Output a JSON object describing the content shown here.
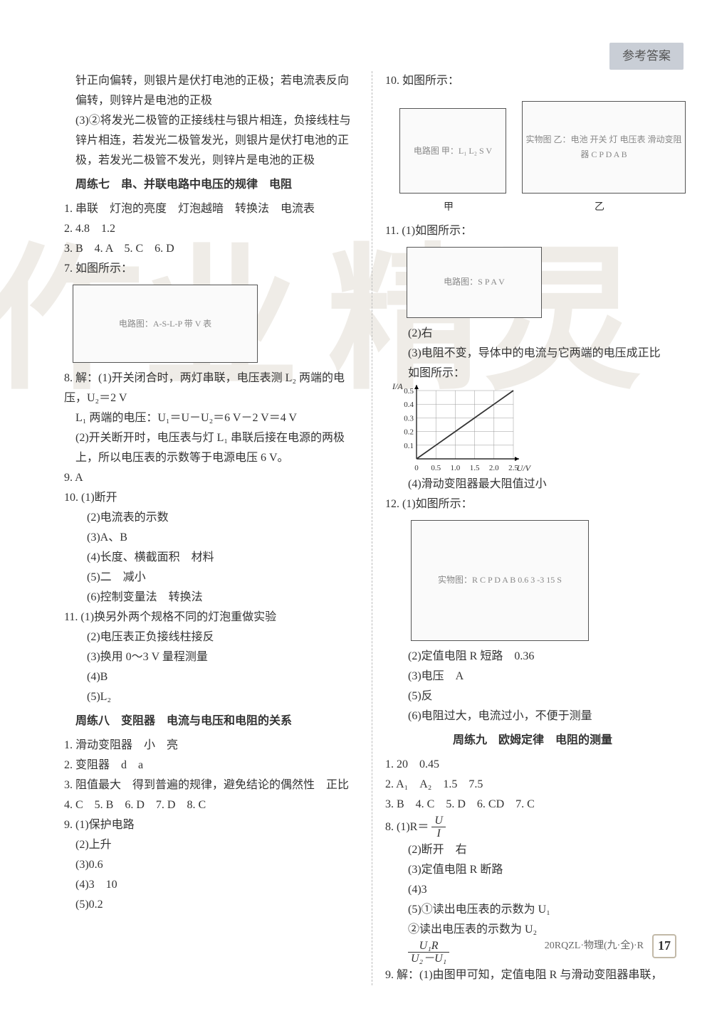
{
  "header_tab": "参考答案",
  "watermark_left": "作业",
  "watermark_right": "精灵",
  "footer_code": "20RQZL·物理(九·全)·R",
  "page_number": "17",
  "left": {
    "p1": "针正向偏转，则银片是伏打电池的正极；若电流表反向偏转，则锌片是电池的正极",
    "p2": "(3)②将发光二极管的正接线柱与银片相连，负接线柱与锌片相连，若发光二极管发光，则银片是伏打电池的正极，若发光二极管不发光，则锌片是电池的正极",
    "title7": "周练七　串、并联电路中电压的规律　电阻",
    "q1": "1. 串联　灯泡的亮度　灯泡越暗　转换法　电流表",
    "q2": "2. 4.8　1.2",
    "q3": "3. B　4. A　5. C　6. D",
    "q7_label": "7. 如图所示：",
    "q7_fig": "电路图：A-S-L-P 带 V 表",
    "q8a": "8. 解：(1)开关闭合时，两灯串联，电压表测 L₂ 两端的电压，U₂＝2 V",
    "q8b": "L₁ 两端的电压：U₁＝U－U₂＝6 V－2 V＝4 V",
    "q8c": "(2)开关断开时，电压表与灯 L₁ 串联后接在电源的两极上，所以电压表的示数等于电源电压 6 V。",
    "q9": "9. A",
    "q10_1": "10. (1)断开",
    "q10_2": "(2)电流表的示数",
    "q10_3": "(3)A、B",
    "q10_4": "(4)长度、横截面积　材料",
    "q10_5": "(5)二　减小",
    "q10_6": "(6)控制变量法　转换法",
    "q11_1": "11. (1)换另外两个规格不同的灯泡重做实验",
    "q11_2": "(2)电压表正负接线柱接反",
    "q11_3": "(3)换用 0～3 V 量程测量",
    "q11_4": "(4)B",
    "q11_5": "(5)L₂",
    "title8": "周练八　变阻器　电流与电压和电阻的关系",
    "r1": "1. 滑动变阻器　小　亮",
    "r2": "2. 变阻器　d　a",
    "r3": "3. 阻值最大　得到普遍的规律，避免结论的偶然性　正比",
    "r4": "4. C　5. B　6. D　7. D　8. C",
    "r9_1": "9. (1)保护电路",
    "r9_2": "(2)上升",
    "r9_3": "(3)0.6",
    "r9_4": "(4)3　10",
    "r9_5": "(5)0.2"
  },
  "right": {
    "q10_label": "10. 如图所示：",
    "fig10_a": "电路图 甲：L₁ L₂ S V",
    "fig10_a_caption": "甲",
    "fig10_b": "实物图 乙：电池 开关 灯 电压表 滑动变阻器 C P D A B",
    "fig10_b_caption": "乙",
    "fig10_b_scale": "-3 15",
    "q11_label": "11. (1)如图所示：",
    "fig11": "电路图：S P A V",
    "q11_2": "(2)右",
    "q11_3a": "(3)电阻不变，导体中的电流与它两端的电压成正比",
    "q11_3b": "如图所示：",
    "chart": {
      "type": "line",
      "ylabel": "I/A",
      "xlabel": "U/V",
      "y_ticks": [
        "0.1",
        "0.2",
        "0.3",
        "0.4",
        "0.5"
      ],
      "x_ticks": [
        "0",
        "0.5",
        "1.0",
        "1.5",
        "2.0",
        "2.5"
      ],
      "points": [
        [
          0,
          0
        ],
        [
          0.5,
          0.1
        ],
        [
          1.0,
          0.2
        ],
        [
          1.5,
          0.3
        ],
        [
          2.0,
          0.4
        ],
        [
          2.5,
          0.5
        ]
      ],
      "xlim": [
        0,
        2.5
      ],
      "ylim": [
        0,
        0.5
      ],
      "line_color": "#333333",
      "grid_color": "#999999",
      "background_color": "#ffffff",
      "label_fontsize": 11,
      "marker": "none"
    },
    "q11_4": "(4)滑动变阻器最大阻值过小",
    "q12_label": "12. (1)如图所示：",
    "fig12": "实物图：R C P D A B 0.6 3 -3 15 S",
    "fig12_labels": "R  C  P  D  A  B  0.6  3  -3 15  S",
    "q12_2": "(2)定值电阻 R 短路　0.36",
    "q12_3": "(3)电压　A",
    "q12_5": "(5)反",
    "q12_6": "(6)电阻过大，电流过小，不便于测量",
    "title9": "周练九　欧姆定律　电阻的测量",
    "s1": "1. 20　0.45",
    "s2": "2. A₁　A₂　1.5　7.5",
    "s3": "3. B　4. C　5. D　6. CD　7. C",
    "s8_label": "8. (1)R＝",
    "s8_frac_num": "U",
    "s8_frac_den": "I",
    "s8_2": "(2)断开　右",
    "s8_3": "(3)定值电阻 R 断路",
    "s8_4": "(4)3",
    "s8_5a": "(5)①读出电压表的示数为 U₁",
    "s8_5b": "②读出电压表的示数为 U₂",
    "s8_frac2_num": "U₁R",
    "s8_frac2_den": "U₂－U₁",
    "s9": "9. 解：(1)由图甲可知，定值电阻 R 与滑动变阻器串联，"
  }
}
